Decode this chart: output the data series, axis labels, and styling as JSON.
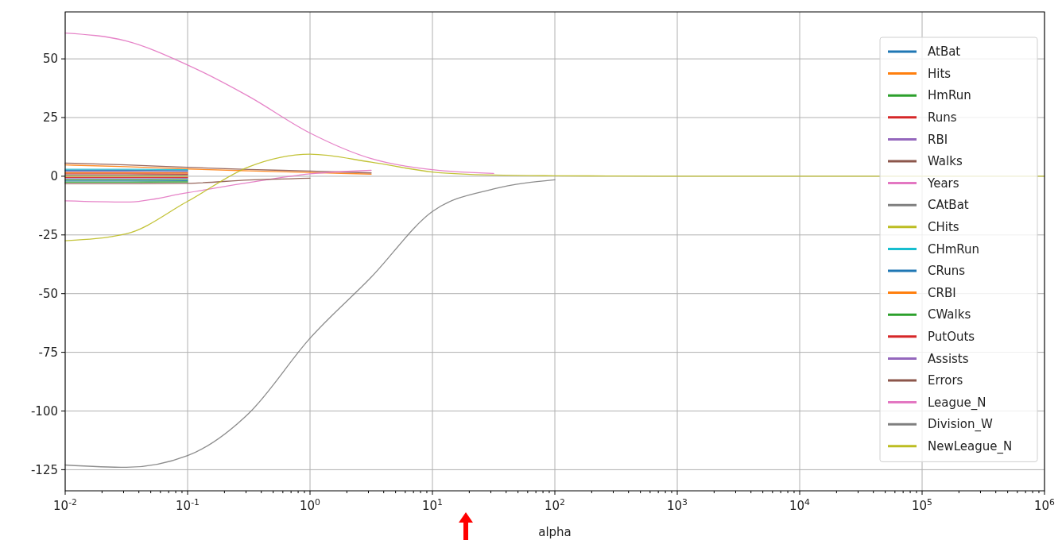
{
  "chart_data": {
    "type": "line",
    "xlabel": "alpha",
    "log": "x",
    "grid": true,
    "legend": "top right",
    "line_style": "solid",
    "marker": "none",
    "xlim": [
      0.01,
      1000000
    ],
    "ylim": [
      -134,
      70
    ],
    "xticks": [
      {
        "value": 0.01,
        "label": "10$^{-2}$"
      },
      {
        "value": 0.1,
        "label": "10$^{-1}$"
      },
      {
        "value": 1,
        "label": "10$^{0}$"
      },
      {
        "value": 10,
        "label": "10$^{1}$"
      },
      {
        "value": 100,
        "label": "10$^{2}$"
      },
      {
        "value": 1000,
        "label": "10$^{3}$"
      },
      {
        "value": 10000,
        "label": "10$^{4}$"
      },
      {
        "value": 100000,
        "label": "10$^{5}$"
      },
      {
        "value": 1000000,
        "label": "10$^{6}$"
      },
      {
        "value": 0.02,
        "label": null
      },
      {
        "value": 0.03,
        "label": null
      },
      {
        "value": 0.04,
        "label": null
      },
      {
        "value": 0.05,
        "label": null
      },
      {
        "value": 0.06,
        "label": null
      },
      {
        "value": 0.07,
        "label": null
      },
      {
        "value": 0.08,
        "label": null
      },
      {
        "value": 0.09,
        "label": null
      },
      {
        "value": 0.2,
        "label": null
      },
      {
        "value": 0.3,
        "label": null
      },
      {
        "value": 0.4,
        "label": null
      },
      {
        "value": 0.5,
        "label": null
      },
      {
        "value": 0.6,
        "label": null
      },
      {
        "value": 0.7,
        "label": null
      },
      {
        "value": 0.8,
        "label": null
      },
      {
        "value": 0.9,
        "label": null
      },
      {
        "value": 2,
        "label": null
      },
      {
        "value": 3,
        "label": null
      },
      {
        "value": 4,
        "label": null
      },
      {
        "value": 5,
        "label": null
      },
      {
        "value": 6,
        "label": null
      },
      {
        "value": 7,
        "label": null
      },
      {
        "value": 8,
        "label": null
      },
      {
        "value": 9,
        "label": null
      },
      {
        "value": 20,
        "label": null
      },
      {
        "value": 30,
        "label": null
      },
      {
        "value": 40,
        "label": null
      },
      {
        "value": 50,
        "label": null
      },
      {
        "value": 60,
        "label": null
      },
      {
        "value": 70,
        "label": null
      },
      {
        "value": 80,
        "label": null
      },
      {
        "value": 90,
        "label": null
      },
      {
        "value": 200,
        "label": null
      },
      {
        "value": 300,
        "label": null
      },
      {
        "value": 400,
        "label": null
      },
      {
        "value": 500,
        "label": null
      },
      {
        "value": 600,
        "label": null
      },
      {
        "value": 700,
        "label": null
      },
      {
        "value": 800,
        "label": null
      },
      {
        "value": 900,
        "label": null
      },
      {
        "value": 2000,
        "label": null
      },
      {
        "value": 3000,
        "label": null
      },
      {
        "value": 4000,
        "label": null
      },
      {
        "value": 5000,
        "label": null
      },
      {
        "value": 6000,
        "label": null
      },
      {
        "value": 7000,
        "label": null
      },
      {
        "value": 8000,
        "label": null
      },
      {
        "value": 9000,
        "label": null
      },
      {
        "value": 20000,
        "label": null
      },
      {
        "value": 30000,
        "label": null
      },
      {
        "value": 40000,
        "label": null
      },
      {
        "value": 50000,
        "label": null
      },
      {
        "value": 60000,
        "label": null
      },
      {
        "value": 70000,
        "label": null
      },
      {
        "value": 80000,
        "label": null
      },
      {
        "value": 90000,
        "label": null
      },
      {
        "value": 200000,
        "label": null
      },
      {
        "value": 300000,
        "label": null
      },
      {
        "value": 400000,
        "label": null
      },
      {
        "value": 500000,
        "label": null
      },
      {
        "value": 600000,
        "label": null
      },
      {
        "value": 700000,
        "label": null
      },
      {
        "value": 800000,
        "label": null
      },
      {
        "value": 900000,
        "label": null
      }
    ],
    "yticks": [
      -125,
      -100,
      -75,
      -50,
      -25,
      0,
      25,
      50
    ],
    "x": [
      0.01,
      0.0316,
      0.1,
      0.316,
      1,
      3.16,
      10,
      31.6,
      100
    ],
    "series": [
      {
        "name": "AtBat",
        "color": "#1f77b4",
        "values": [
          -2,
          -2,
          -1.9,
          null,
          null,
          null,
          null,
          null,
          null
        ]
      },
      {
        "name": "Hits",
        "color": "#ff7f0e",
        "values": [
          4.8,
          4.1,
          3.1,
          2.3,
          1.6,
          0.9,
          null,
          null,
          null
        ]
      },
      {
        "name": "HmRun",
        "color": "#2ca02c",
        "values": [
          -2.5,
          -2.5,
          -2.4,
          null,
          null,
          null,
          null,
          null,
          null
        ]
      },
      {
        "name": "Runs",
        "color": "#d62728",
        "values": [
          1,
          1,
          0.9,
          null,
          null,
          null,
          null,
          null,
          null
        ]
      },
      {
        "name": "RBI",
        "color": "#9467bd",
        "values": [
          2,
          2,
          1.9,
          null,
          null,
          null,
          null,
          null,
          null
        ]
      },
      {
        "name": "Walks",
        "color": "#8c564b",
        "values": [
          5.6,
          4.8,
          3.8,
          2.9,
          2.2,
          1.4,
          null,
          null,
          null
        ]
      },
      {
        "name": "Years",
        "color": "#e377c2",
        "values": [
          -10.5,
          -11,
          -7,
          -2.7,
          1,
          2.5,
          null,
          null,
          null
        ]
      },
      {
        "name": "CAtBat",
        "color": "#7f7f7f",
        "values": [
          0.5,
          0.5,
          0.5,
          null,
          null,
          null,
          null,
          null,
          null
        ]
      },
      {
        "name": "CHits",
        "color": "#bcbd22",
        "values": [
          0,
          0,
          0,
          null,
          null,
          null,
          null,
          null,
          null
        ]
      },
      {
        "name": "CHmRun",
        "color": "#17becf",
        "values": [
          3,
          3,
          2.8,
          null,
          null,
          null,
          null,
          null,
          null
        ]
      },
      {
        "name": "CRuns",
        "color": "#1f77b4",
        "values": [
          2.5,
          2.5,
          2.4,
          null,
          null,
          null,
          null,
          null,
          null
        ]
      },
      {
        "name": "CRBI",
        "color": "#ff7f0e",
        "values": [
          1.5,
          1.5,
          1.4,
          null,
          null,
          null,
          null,
          null,
          null
        ]
      },
      {
        "name": "CWalks",
        "color": "#2ca02c",
        "values": [
          -1.5,
          -1.5,
          -1.4,
          null,
          null,
          null,
          null,
          null,
          null
        ]
      },
      {
        "name": "PutOuts",
        "color": "#d62728",
        "values": [
          -0.5,
          -0.5,
          -0.5,
          null,
          null,
          null,
          null,
          null,
          null
        ]
      },
      {
        "name": "Assists",
        "color": "#9467bd",
        "values": [
          -1,
          -1,
          -0.9,
          null,
          null,
          null,
          null,
          null,
          null
        ]
      },
      {
        "name": "Errors",
        "color": "#8c564b",
        "values": [
          -3.2,
          -3.2,
          -3,
          -1.6,
          -0.8,
          null,
          null,
          null,
          null
        ]
      },
      {
        "name": "League_N",
        "color": "#e377c2",
        "values": [
          61,
          57.6,
          47.4,
          34,
          18.4,
          7.5,
          2.8,
          1.2,
          null
        ]
      },
      {
        "name": "Division_W",
        "color": "#7f7f7f",
        "values": [
          -123,
          -124,
          -119,
          -101,
          -69,
          -43,
          -15,
          -5.4,
          -1.5
        ]
      },
      {
        "name": "NewLeague_N",
        "color": "#bcbd22",
        "x": [
          0.01,
          0.0316,
          0.1,
          0.316,
          1,
          3.16,
          10,
          31.6,
          100,
          316,
          1000,
          3162,
          10000,
          31623,
          1000000
        ],
        "values": [
          -27.5,
          -24.5,
          -10.7,
          4,
          9.4,
          6,
          1.8,
          0.5,
          0.2,
          0.1,
          0,
          0,
          0,
          0,
          0
        ]
      }
    ]
  }
}
